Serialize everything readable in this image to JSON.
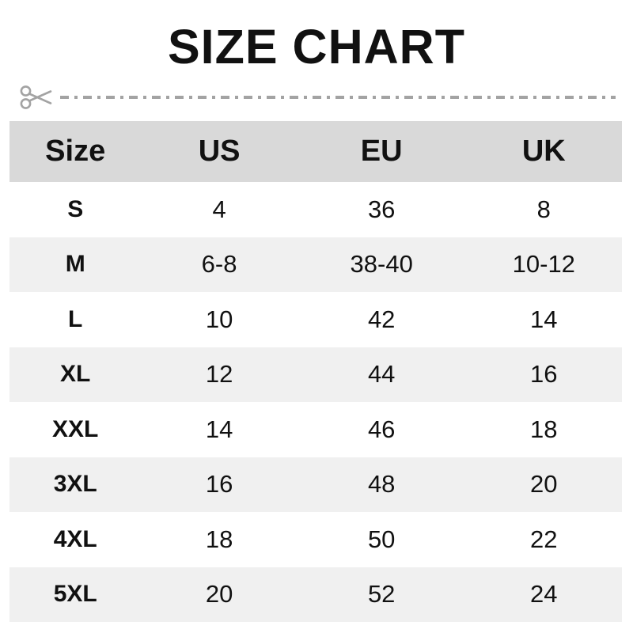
{
  "title": "SIZE CHART",
  "cut_line": {
    "icon": "scissors",
    "style": "dash-dot"
  },
  "colors": {
    "header_row_bg": "#d9d9d9",
    "zebra_stripe_bg": "#f0f0f0",
    "text": "#111111",
    "cut_line_gray": "#a3a3a3",
    "page_bg": "#ffffff"
  },
  "chart_data": {
    "type": "table",
    "title": "SIZE CHART",
    "columns": [
      "Size",
      "US",
      "EU",
      "UK"
    ],
    "rows": [
      [
        "S",
        "4",
        "36",
        "8"
      ],
      [
        "M",
        "6-8",
        "38-40",
        "10-12"
      ],
      [
        "L",
        "10",
        "42",
        "14"
      ],
      [
        "XL",
        "12",
        "44",
        "16"
      ],
      [
        "XXL",
        "14",
        "46",
        "18"
      ],
      [
        "3XL",
        "16",
        "48",
        "20"
      ],
      [
        "4XL",
        "18",
        "50",
        "22"
      ],
      [
        "5XL",
        "20",
        "52",
        "24"
      ]
    ],
    "layout_hints": {
      "zebra_striping": true,
      "striped_row_indices": [
        1,
        3,
        5,
        7
      ],
      "header_background": "#d9d9d9",
      "stripe_background": "#f0f0f0",
      "alignment": "center"
    }
  }
}
